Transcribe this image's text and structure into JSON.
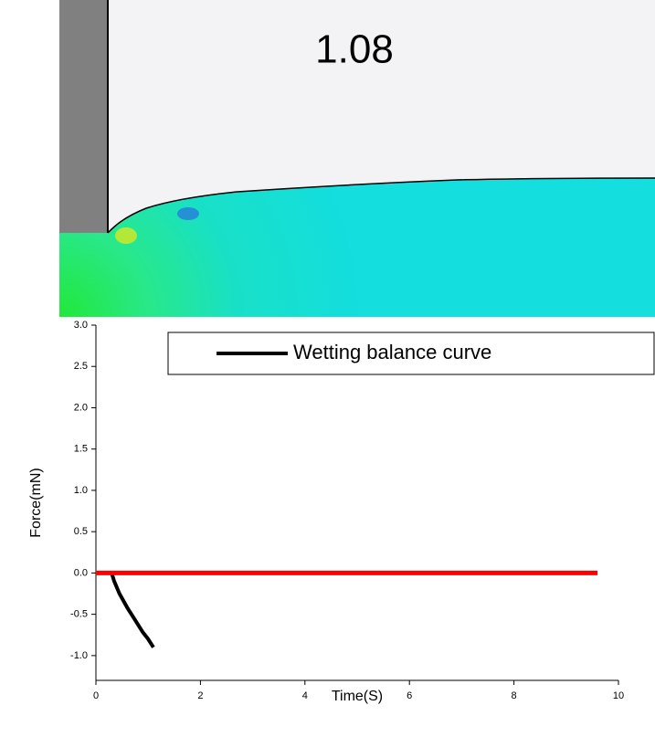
{
  "simulation": {
    "time_label": "1.08"
  },
  "chart_data": {
    "type": "line",
    "xlabel": "Time(S)",
    "ylabel": "Force(mN)",
    "xlim": [
      0,
      10
    ],
    "ylim": [
      -1.3,
      3.0
    ],
    "xticks": [
      0,
      2,
      4,
      6,
      8,
      10
    ],
    "yticks": [
      {
        "value": 3,
        "label": "3.0"
      },
      {
        "value": 2.5,
        "label": "2.5"
      },
      {
        "value": 2,
        "label": "2.0"
      },
      {
        "value": 1.5,
        "label": "1.5"
      },
      {
        "value": 1,
        "label": "1.0"
      },
      {
        "value": 0.5,
        "label": "0.5"
      },
      {
        "value": 0,
        "label": "0.0"
      },
      -0.5,
      {
        "value": -1,
        "label": "-1.0"
      }
    ],
    "legend": "top-right",
    "series": [
      {
        "name": "Wetting balance curve",
        "color": "#000000",
        "width": 4,
        "x": [
          0.3,
          0.35,
          0.45,
          0.6,
          0.75,
          0.9,
          1.0,
          1.1
        ],
        "values": [
          0,
          -0.1,
          -0.25,
          -0.42,
          -0.57,
          -0.72,
          -0.8,
          -0.9
        ]
      },
      {
        "color": "#ff0000",
        "width": 5,
        "x": [
          0,
          9.6
        ],
        "values": [
          0,
          0
        ]
      }
    ]
  }
}
